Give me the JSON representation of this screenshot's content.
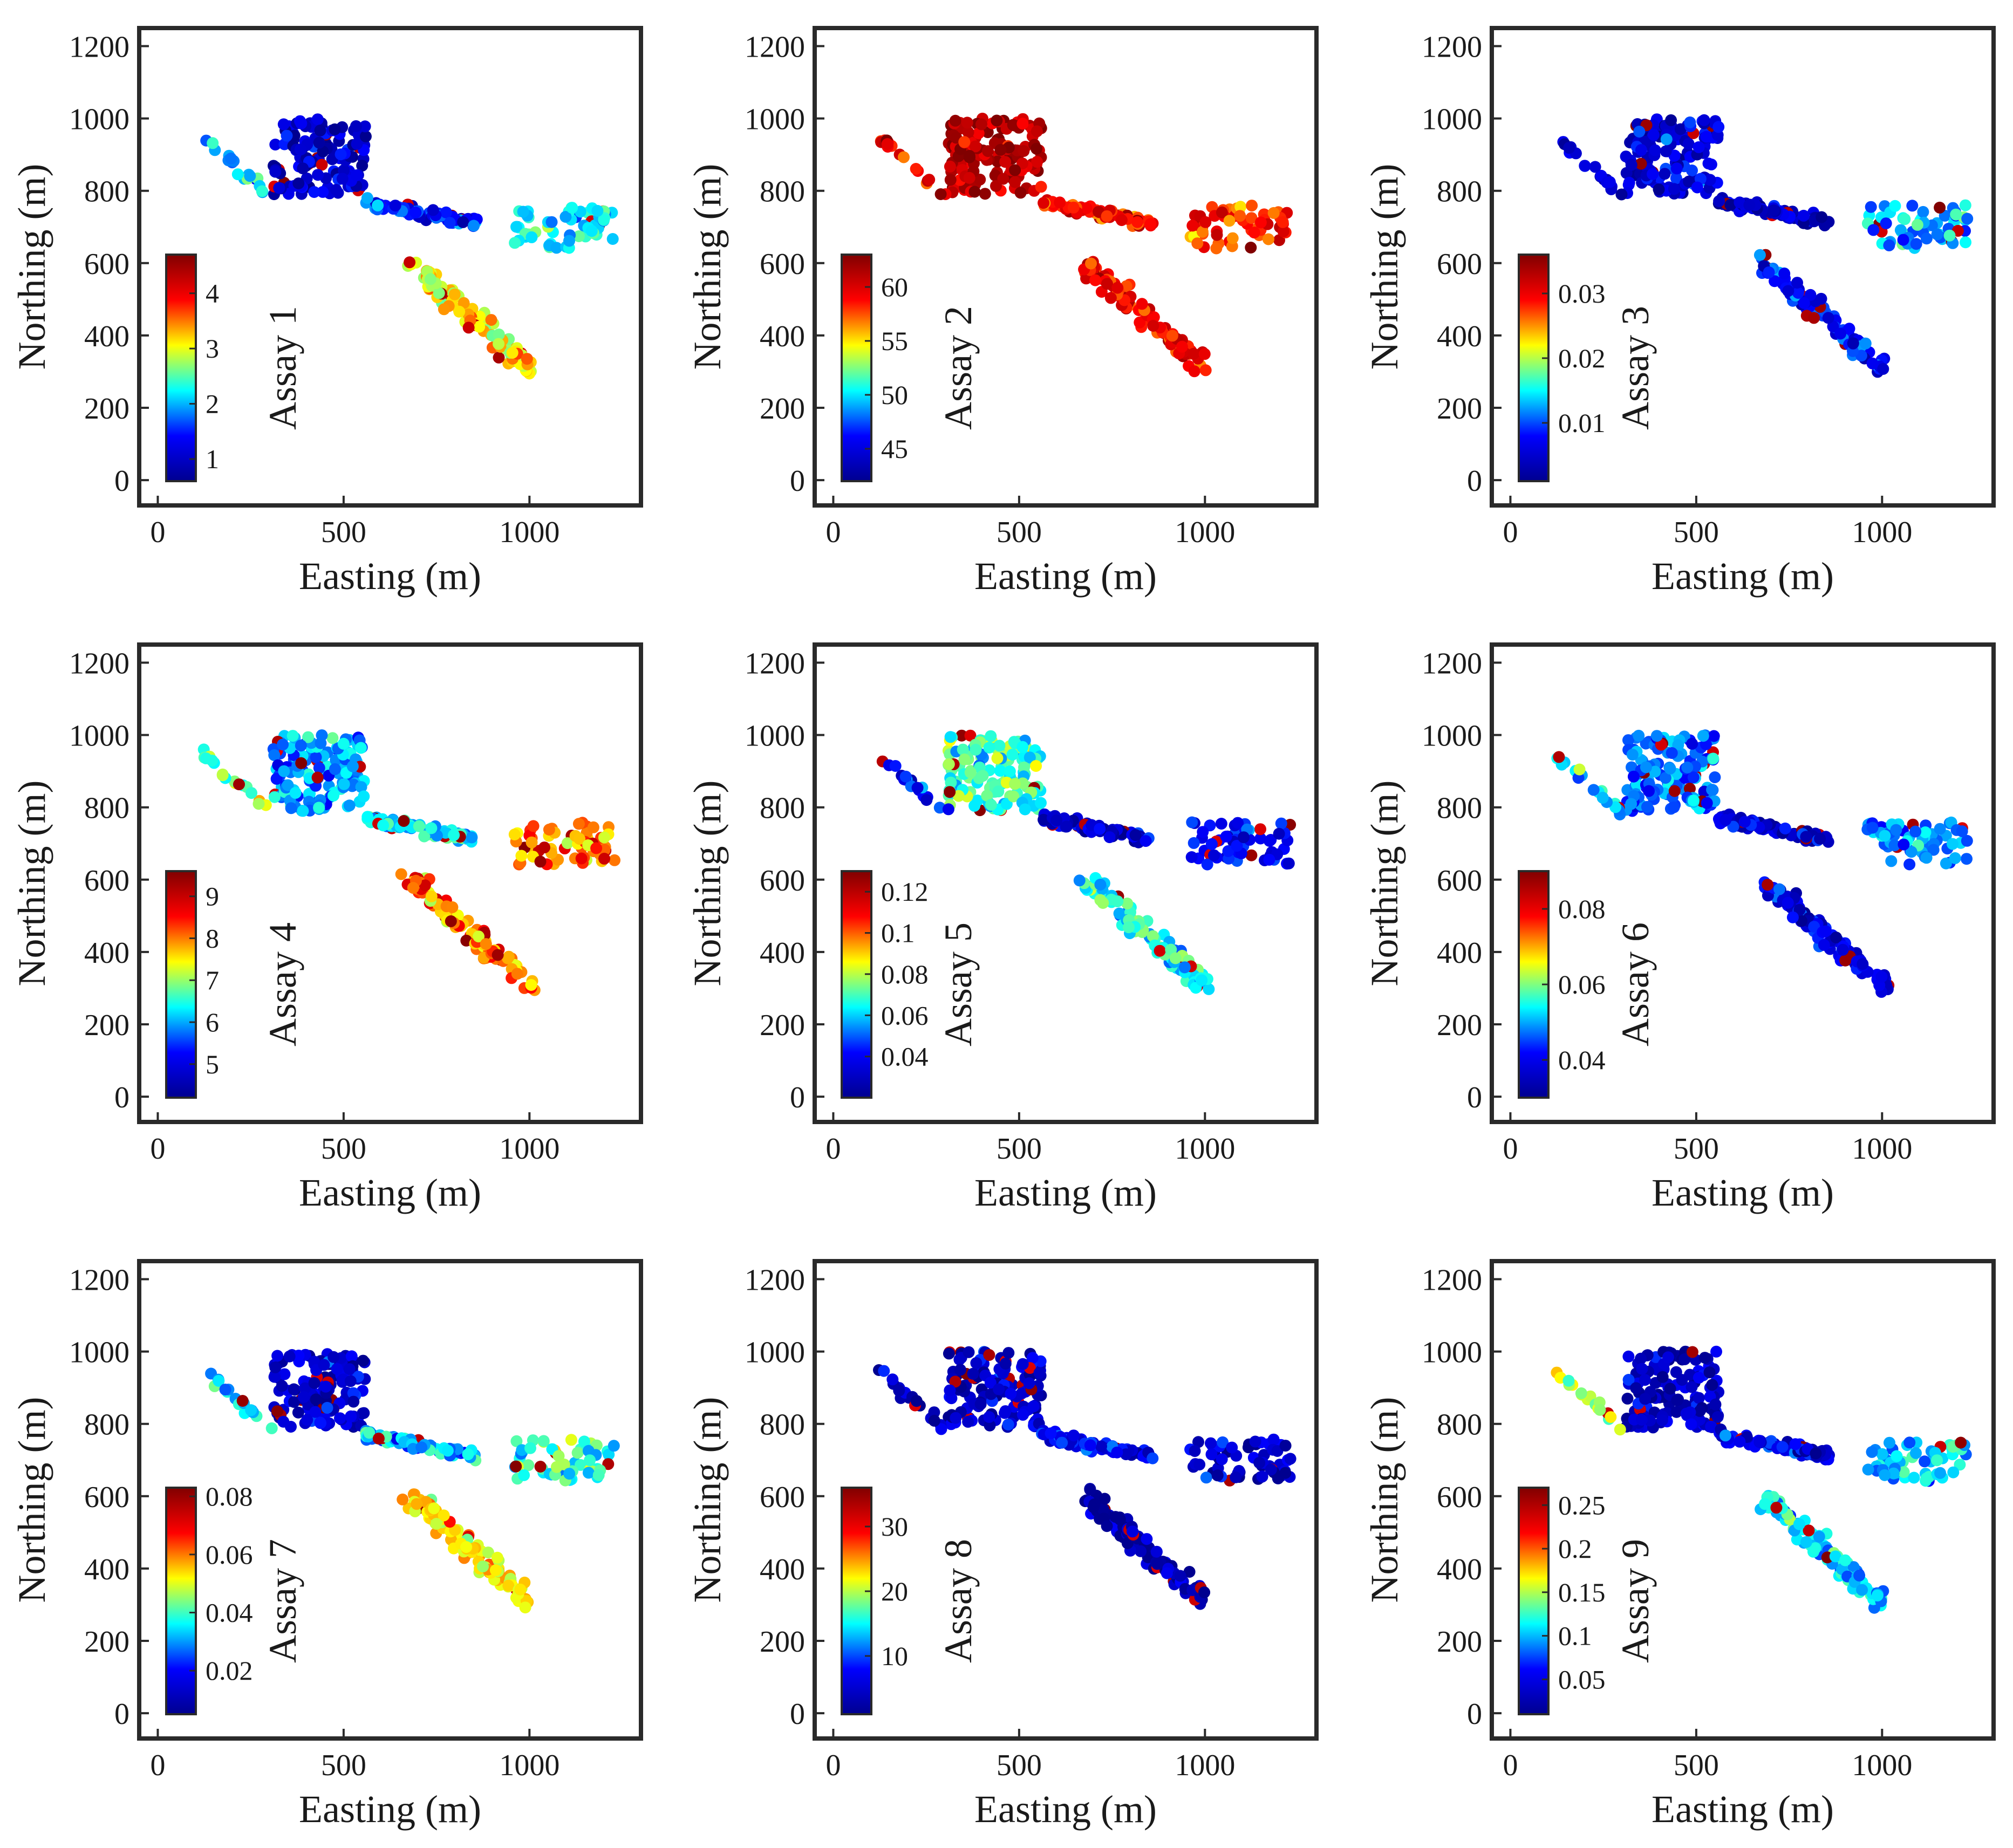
{
  "figure": {
    "layout": "3x3 grid of scatter maps colored by assay value",
    "colormap": "jet",
    "colormap_stops": [
      "#00008f",
      "#0000ff",
      "#00ffff",
      "#ffff00",
      "#ff0000",
      "#800000"
    ]
  },
  "chart_data": [
    {
      "type": "scatter",
      "xlabel": "Easting (m)",
      "ylabel": "Northing (m)",
      "xlim": [
        -50,
        1300
      ],
      "ylim": [
        -70,
        1250
      ],
      "xticks": [
        0,
        500,
        1000
      ],
      "yticks": [
        0,
        200,
        400,
        600,
        800,
        1000,
        1200
      ],
      "colorbar": {
        "label": "Assay 1",
        "range": [
          0.6,
          4.7
        ],
        "ticks": [
          1,
          2,
          3,
          4
        ],
        "tick_labels": [
          "1",
          "2",
          "3",
          "4"
        ]
      },
      "clusters": [
        {
          "name": "north-west",
          "x_range": [
            310,
            560
          ],
          "y_range": [
            790,
            1000
          ],
          "level": 0.1
        },
        {
          "name": "tail",
          "x_range": [
            120,
            310
          ],
          "y_range": [
            780,
            950
          ],
          "level": 0.35
        },
        {
          "name": "middle-belt",
          "x_range": [
            560,
            860
          ],
          "y_range": [
            680,
            770
          ],
          "level": 0.2
        },
        {
          "name": "east",
          "x_range": [
            960,
            1230
          ],
          "y_range": [
            640,
            760
          ],
          "level": 0.4
        },
        {
          "name": "south-east",
          "x_range": [
            680,
            1080
          ],
          "y_range": [
            310,
            600
          ],
          "level": 0.6
        }
      ]
    },
    {
      "type": "scatter",
      "xlabel": "Easting (m)",
      "ylabel": "Northing (m)",
      "xlim": [
        -50,
        1300
      ],
      "ylim": [
        -70,
        1250
      ],
      "xticks": [
        0,
        500,
        1000
      ],
      "yticks": [
        0,
        200,
        400,
        600,
        800,
        1000,
        1200
      ],
      "colorbar": {
        "label": "Assay 2",
        "range": [
          42,
          63
        ],
        "ticks": [
          45,
          50,
          55,
          60
        ],
        "tick_labels": [
          "45",
          "50",
          "55",
          "60"
        ]
      },
      "clusters": [
        {
          "name": "north-west",
          "x_range": [
            310,
            560
          ],
          "y_range": [
            790,
            1000
          ],
          "level": 0.92
        },
        {
          "name": "tail",
          "x_range": [
            120,
            310
          ],
          "y_range": [
            780,
            950
          ],
          "level": 0.85
        },
        {
          "name": "middle-belt",
          "x_range": [
            560,
            860
          ],
          "y_range": [
            680,
            770
          ],
          "level": 0.8
        },
        {
          "name": "east",
          "x_range": [
            960,
            1230
          ],
          "y_range": [
            640,
            760
          ],
          "level": 0.78
        },
        {
          "name": "south-east",
          "x_range": [
            680,
            1080
          ],
          "y_range": [
            310,
            600
          ],
          "level": 0.82
        }
      ]
    },
    {
      "type": "scatter",
      "xlabel": "Easting (m)",
      "ylabel": "Northing (m)",
      "xlim": [
        -50,
        1300
      ],
      "ylim": [
        -70,
        1250
      ],
      "xticks": [
        0,
        500,
        1000
      ],
      "yticks": [
        0,
        200,
        400,
        600,
        800,
        1000,
        1200
      ],
      "colorbar": {
        "label": "Assay 3",
        "range": [
          0.001,
          0.036
        ],
        "ticks": [
          0.01,
          0.02,
          0.03
        ],
        "tick_labels": [
          "0.01",
          "0.02",
          "0.03"
        ]
      },
      "clusters": [
        {
          "name": "north-west",
          "x_range": [
            310,
            560
          ],
          "y_range": [
            790,
            1000
          ],
          "level": 0.15
        },
        {
          "name": "tail",
          "x_range": [
            120,
            310
          ],
          "y_range": [
            780,
            950
          ],
          "level": 0.12
        },
        {
          "name": "middle-belt",
          "x_range": [
            560,
            860
          ],
          "y_range": [
            680,
            770
          ],
          "level": 0.1
        },
        {
          "name": "east",
          "x_range": [
            960,
            1230
          ],
          "y_range": [
            640,
            760
          ],
          "level": 0.35
        },
        {
          "name": "south-east",
          "x_range": [
            680,
            1080
          ],
          "y_range": [
            310,
            600
          ],
          "level": 0.2
        }
      ]
    },
    {
      "type": "scatter",
      "xlabel": "Easting (m)",
      "ylabel": "Northing (m)",
      "xlim": [
        -50,
        1300
      ],
      "ylim": [
        -70,
        1250
      ],
      "xticks": [
        0,
        500,
        1000
      ],
      "yticks": [
        0,
        200,
        400,
        600,
        800,
        1000,
        1200
      ],
      "colorbar": {
        "label": "Assay 4",
        "range": [
          4.2,
          9.6
        ],
        "ticks": [
          5,
          6,
          7,
          8,
          9
        ],
        "tick_labels": [
          "5",
          "6",
          "7",
          "8",
          "9"
        ]
      },
      "clusters": [
        {
          "name": "north-west",
          "x_range": [
            310,
            560
          ],
          "y_range": [
            790,
            1000
          ],
          "level": 0.32
        },
        {
          "name": "tail",
          "x_range": [
            120,
            310
          ],
          "y_range": [
            780,
            950
          ],
          "level": 0.5
        },
        {
          "name": "middle-belt",
          "x_range": [
            560,
            860
          ],
          "y_range": [
            680,
            770
          ],
          "level": 0.4
        },
        {
          "name": "east",
          "x_range": [
            960,
            1230
          ],
          "y_range": [
            640,
            760
          ],
          "level": 0.7
        },
        {
          "name": "south-east",
          "x_range": [
            680,
            1080
          ],
          "y_range": [
            310,
            600
          ],
          "level": 0.68
        }
      ]
    },
    {
      "type": "scatter",
      "xlabel": "Easting (m)",
      "ylabel": "Northing (m)",
      "xlim": [
        -50,
        1300
      ],
      "ylim": [
        -70,
        1250
      ],
      "xticks": [
        0,
        500,
        1000
      ],
      "yticks": [
        0,
        200,
        400,
        600,
        800,
        1000,
        1200
      ],
      "colorbar": {
        "label": "Assay 5",
        "range": [
          0.02,
          0.13
        ],
        "ticks": [
          0.04,
          0.06,
          0.08,
          0.1,
          0.12
        ],
        "tick_labels": [
          "0.04",
          "0.06",
          "0.08",
          "0.1",
          "0.12"
        ]
      },
      "clusters": [
        {
          "name": "north-west",
          "x_range": [
            310,
            560
          ],
          "y_range": [
            790,
            1000
          ],
          "level": 0.45
        },
        {
          "name": "tail",
          "x_range": [
            120,
            310
          ],
          "y_range": [
            780,
            950
          ],
          "level": 0.2
        },
        {
          "name": "middle-belt",
          "x_range": [
            560,
            860
          ],
          "y_range": [
            680,
            770
          ],
          "level": 0.1
        },
        {
          "name": "east",
          "x_range": [
            960,
            1230
          ],
          "y_range": [
            640,
            760
          ],
          "level": 0.2
        },
        {
          "name": "south-east",
          "x_range": [
            680,
            1080
          ],
          "y_range": [
            310,
            600
          ],
          "level": 0.42
        }
      ]
    },
    {
      "type": "scatter",
      "xlabel": "Easting (m)",
      "ylabel": "Northing (m)",
      "xlim": [
        -50,
        1300
      ],
      "ylim": [
        -70,
        1250
      ],
      "xticks": [
        0,
        500,
        1000
      ],
      "yticks": [
        0,
        200,
        400,
        600,
        800,
        1000,
        1200
      ],
      "colorbar": {
        "label": "Assay 6",
        "range": [
          0.03,
          0.09
        ],
        "ticks": [
          0.04,
          0.06,
          0.08
        ],
        "tick_labels": [
          "0.04",
          "0.06",
          "0.08"
        ]
      },
      "clusters": [
        {
          "name": "north-west",
          "x_range": [
            310,
            560
          ],
          "y_range": [
            790,
            1000
          ],
          "level": 0.28
        },
        {
          "name": "tail",
          "x_range": [
            120,
            310
          ],
          "y_range": [
            780,
            950
          ],
          "level": 0.42
        },
        {
          "name": "middle-belt",
          "x_range": [
            560,
            860
          ],
          "y_range": [
            680,
            770
          ],
          "level": 0.12
        },
        {
          "name": "east",
          "x_range": [
            960,
            1230
          ],
          "y_range": [
            640,
            760
          ],
          "level": 0.3
        },
        {
          "name": "south-east",
          "x_range": [
            680,
            1080
          ],
          "y_range": [
            310,
            600
          ],
          "level": 0.15
        }
      ]
    },
    {
      "type": "scatter",
      "xlabel": "Easting (m)",
      "ylabel": "Northing (m)",
      "xlim": [
        -50,
        1300
      ],
      "ylim": [
        -70,
        1250
      ],
      "xticks": [
        0,
        500,
        1000
      ],
      "yticks": [
        0,
        200,
        400,
        600,
        800,
        1000,
        1200
      ],
      "colorbar": {
        "label": "Assay 7",
        "range": [
          0.005,
          0.083
        ],
        "ticks": [
          0.02,
          0.04,
          0.06,
          0.08
        ],
        "tick_labels": [
          "0.02",
          "0.04",
          "0.06",
          "0.08"
        ]
      },
      "clusters": [
        {
          "name": "north-west",
          "x_range": [
            310,
            560
          ],
          "y_range": [
            790,
            1000
          ],
          "level": 0.12
        },
        {
          "name": "tail",
          "x_range": [
            120,
            310
          ],
          "y_range": [
            780,
            950
          ],
          "level": 0.35
        },
        {
          "name": "middle-belt",
          "x_range": [
            560,
            860
          ],
          "y_range": [
            680,
            770
          ],
          "level": 0.35
        },
        {
          "name": "east",
          "x_range": [
            960,
            1230
          ],
          "y_range": [
            640,
            760
          ],
          "level": 0.45
        },
        {
          "name": "south-east",
          "x_range": [
            680,
            1080
          ],
          "y_range": [
            310,
            600
          ],
          "level": 0.62
        }
      ]
    },
    {
      "type": "scatter",
      "xlabel": "Easting (m)",
      "ylabel": "Northing (m)",
      "xlim": [
        -50,
        1300
      ],
      "ylim": [
        -70,
        1250
      ],
      "xticks": [
        0,
        500,
        1000
      ],
      "yticks": [
        0,
        200,
        400,
        600,
        800,
        1000,
        1200
      ],
      "colorbar": {
        "label": "Assay 8",
        "range": [
          1,
          36
        ],
        "ticks": [
          10,
          20,
          30
        ],
        "tick_labels": [
          "10",
          "20",
          "30"
        ]
      },
      "clusters": [
        {
          "name": "north-west",
          "x_range": [
            310,
            560
          ],
          "y_range": [
            790,
            1000
          ],
          "level": 0.1
        },
        {
          "name": "tail",
          "x_range": [
            120,
            310
          ],
          "y_range": [
            780,
            950
          ],
          "level": 0.05
        },
        {
          "name": "middle-belt",
          "x_range": [
            560,
            860
          ],
          "y_range": [
            680,
            770
          ],
          "level": 0.18
        },
        {
          "name": "east",
          "x_range": [
            960,
            1230
          ],
          "y_range": [
            640,
            760
          ],
          "level": 0.1
        },
        {
          "name": "south-east",
          "x_range": [
            680,
            1080
          ],
          "y_range": [
            310,
            600
          ],
          "level": 0.05
        }
      ]
    },
    {
      "type": "scatter",
      "xlabel": "Easting (m)",
      "ylabel": "Northing (m)",
      "xlim": [
        -50,
        1300
      ],
      "ylim": [
        -70,
        1250
      ],
      "xticks": [
        0,
        500,
        1000
      ],
      "yticks": [
        0,
        200,
        400,
        600,
        800,
        1000,
        1200
      ],
      "colorbar": {
        "label": "Assay 9",
        "range": [
          0.01,
          0.27
        ],
        "ticks": [
          0.05,
          0.1,
          0.15,
          0.2,
          0.25
        ],
        "tick_labels": [
          "0.05",
          "0.1",
          "0.15",
          "0.2",
          "0.25"
        ]
      },
      "clusters": [
        {
          "name": "north-west",
          "x_range": [
            310,
            560
          ],
          "y_range": [
            790,
            1000
          ],
          "level": 0.1
        },
        {
          "name": "tail",
          "x_range": [
            120,
            310
          ],
          "y_range": [
            780,
            950
          ],
          "level": 0.55
        },
        {
          "name": "middle-belt",
          "x_range": [
            560,
            860
          ],
          "y_range": [
            680,
            770
          ],
          "level": 0.15
        },
        {
          "name": "east",
          "x_range": [
            960,
            1230
          ],
          "y_range": [
            640,
            760
          ],
          "level": 0.4
        },
        {
          "name": "south-east",
          "x_range": [
            680,
            1080
          ],
          "y_range": [
            310,
            600
          ],
          "level": 0.35
        }
      ]
    }
  ]
}
